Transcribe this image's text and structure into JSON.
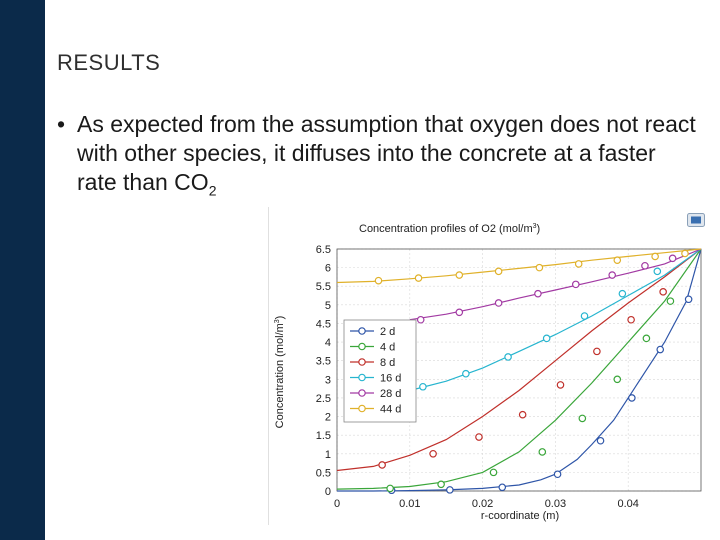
{
  "slide": {
    "heading": "RESULTS",
    "bullet_text": "As expected from the assumption that oxygen does not react with other species, it diffuses into the concrete at a faster rate than CO",
    "bullet_subscript": "2",
    "bullet_symbol": "•"
  },
  "colors": {
    "sidebar": "#0b2a4a",
    "series": [
      "#2e55a8",
      "#3aa63a",
      "#c0302b",
      "#27b5cf",
      "#a23aa3",
      "#e0b12a"
    ]
  },
  "chart_data": {
    "type": "line",
    "title": "Concentration profiles of O2 (mol/m",
    "title_sup": "3",
    "title_close": ")",
    "xlabel": "r-coordinate (m)",
    "ylabel": "Concentration (mol/m",
    "ylabel_sup": "3",
    "ylabel_close": ")",
    "xlim": [
      0,
      0.05
    ],
    "ylim": [
      0,
      6.5
    ],
    "xticks": [
      "0",
      "0.01",
      "0.02",
      "0.03",
      "0.04"
    ],
    "xtick_values": [
      0,
      0.01,
      0.02,
      0.03,
      0.04
    ],
    "yticks": [
      "0",
      "0.5",
      "1",
      "1.5",
      "2",
      "2.5",
      "3",
      "3.5",
      "4",
      "4.5",
      "5",
      "5.5",
      "6",
      "6.5"
    ],
    "ytick_values": [
      0,
      0.5,
      1,
      1.5,
      2,
      2.5,
      3,
      3.5,
      4,
      4.5,
      5,
      5.5,
      6,
      6.5
    ],
    "grid": true,
    "legend_position": "center-left",
    "series": [
      {
        "name": "2 d",
        "x": [
          0,
          0.005,
          0.01,
          0.015,
          0.02,
          0.025,
          0.028,
          0.03,
          0.033,
          0.035,
          0.038,
          0.04,
          0.043,
          0.045,
          0.048,
          0.05
        ],
        "y": [
          0,
          0,
          0.01,
          0.03,
          0.07,
          0.16,
          0.3,
          0.45,
          0.85,
          1.25,
          1.9,
          2.5,
          3.4,
          4.0,
          5.1,
          6.5
        ],
        "markers": [
          [
            0.0075,
            0.02
          ],
          [
            0.0155,
            0.03
          ],
          [
            0.0227,
            0.1
          ],
          [
            0.0303,
            0.45
          ],
          [
            0.0362,
            1.35
          ],
          [
            0.0405,
            2.5
          ],
          [
            0.0444,
            3.8
          ],
          [
            0.0483,
            5.15
          ]
        ]
      },
      {
        "name": "4 d",
        "x": [
          0,
          0.005,
          0.01,
          0.015,
          0.02,
          0.025,
          0.03,
          0.035,
          0.04,
          0.045,
          0.05
        ],
        "y": [
          0.05,
          0.07,
          0.12,
          0.25,
          0.5,
          1.05,
          1.9,
          2.9,
          4.0,
          5.1,
          6.5
        ],
        "markers": [
          [
            0.0073,
            0.07
          ],
          [
            0.0143,
            0.18
          ],
          [
            0.0215,
            0.5
          ],
          [
            0.0282,
            1.05
          ],
          [
            0.0337,
            1.95
          ],
          [
            0.0385,
            3.0
          ],
          [
            0.0425,
            4.1
          ],
          [
            0.0458,
            5.1
          ]
        ]
      },
      {
        "name": "8 d",
        "x": [
          0,
          0.005,
          0.01,
          0.015,
          0.02,
          0.025,
          0.03,
          0.035,
          0.04,
          0.045,
          0.05
        ],
        "y": [
          0.55,
          0.66,
          0.96,
          1.38,
          2.0,
          2.7,
          3.5,
          4.3,
          5.05,
          5.75,
          6.5
        ],
        "markers": [
          [
            0.0062,
            0.7
          ],
          [
            0.0132,
            1.0
          ],
          [
            0.0195,
            1.45
          ],
          [
            0.0255,
            2.05
          ],
          [
            0.0307,
            2.85
          ],
          [
            0.0357,
            3.75
          ],
          [
            0.0404,
            4.6
          ],
          [
            0.0448,
            5.35
          ]
        ]
      },
      {
        "name": "16 d",
        "x": [
          0.01,
          0.015,
          0.02,
          0.025,
          0.03,
          0.035,
          0.04,
          0.045,
          0.05
        ],
        "y": [
          2.7,
          2.95,
          3.3,
          3.75,
          4.2,
          4.7,
          5.25,
          5.8,
          6.5
        ],
        "markers": [
          [
            0.0118,
            2.8
          ],
          [
            0.0177,
            3.15
          ],
          [
            0.0235,
            3.6
          ],
          [
            0.0288,
            4.1
          ],
          [
            0.034,
            4.7
          ],
          [
            0.0392,
            5.3
          ],
          [
            0.044,
            5.9
          ]
        ]
      },
      {
        "name": "28 d",
        "x": [
          0.01,
          0.015,
          0.02,
          0.025,
          0.03,
          0.035,
          0.04,
          0.045,
          0.05
        ],
        "y": [
          4.6,
          4.75,
          4.95,
          5.18,
          5.4,
          5.62,
          5.85,
          6.1,
          6.5
        ],
        "markers": [
          [
            0.0115,
            4.6
          ],
          [
            0.0168,
            4.8
          ],
          [
            0.0222,
            5.05
          ],
          [
            0.0276,
            5.3
          ],
          [
            0.0328,
            5.55
          ],
          [
            0.0378,
            5.8
          ],
          [
            0.0423,
            6.05
          ],
          [
            0.0461,
            6.25
          ]
        ]
      },
      {
        "name": "44 d",
        "x": [
          0,
          0.005,
          0.01,
          0.015,
          0.02,
          0.025,
          0.03,
          0.035,
          0.04,
          0.045,
          0.05
        ],
        "y": [
          5.6,
          5.63,
          5.7,
          5.78,
          5.88,
          5.98,
          6.08,
          6.2,
          6.3,
          6.4,
          6.5
        ],
        "markers": [
          [
            0.0057,
            5.65
          ],
          [
            0.0112,
            5.72
          ],
          [
            0.0168,
            5.8
          ],
          [
            0.0222,
            5.9
          ],
          [
            0.0278,
            6.0
          ],
          [
            0.0332,
            6.1
          ],
          [
            0.0385,
            6.2
          ],
          [
            0.0437,
            6.3
          ],
          [
            0.0478,
            6.38
          ]
        ]
      }
    ]
  }
}
